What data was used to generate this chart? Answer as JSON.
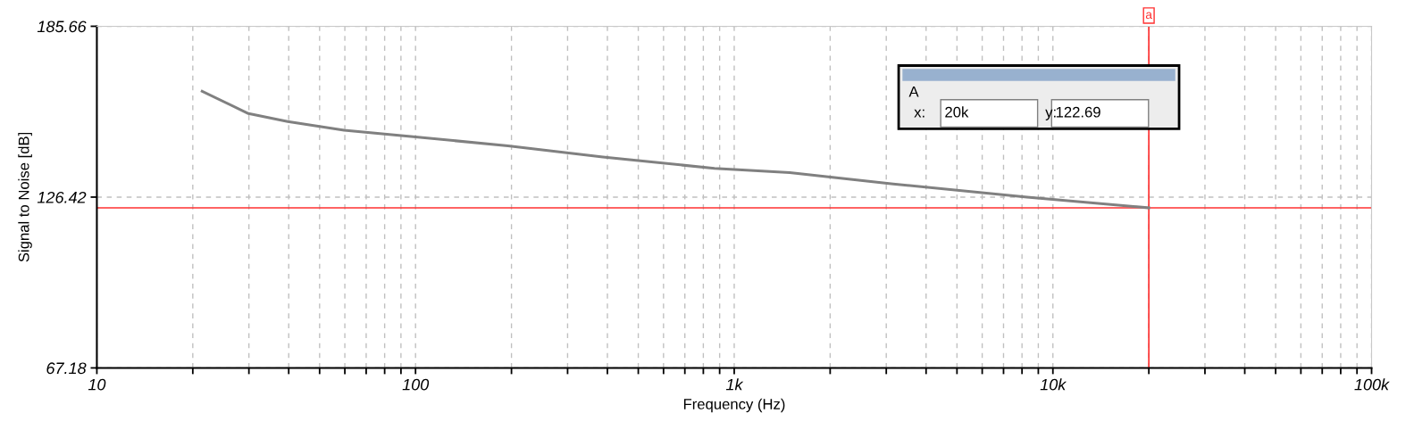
{
  "chart_data": {
    "type": "line",
    "xlabel": "Frequency (Hz)",
    "ylabel": "Signal to Noise [dB]",
    "log": "x",
    "x": [
      21.4,
      29.9,
      39.7,
      59.7,
      100,
      195,
      387,
      867,
      1494,
      3155,
      8300,
      20000
    ],
    "series": [
      {
        "color": "#808080",
        "values": [
          163.1,
          155.4,
          152.6,
          149.6,
          147.3,
          144.2,
          140.3,
          136.4,
          134.9,
          131.0,
          126.4,
          122.69
        ]
      }
    ],
    "xlim": [
      10,
      100000
    ],
    "xticks": [
      {
        "value": 10,
        "label": "10"
      },
      {
        "value": 20,
        "label": null
      },
      {
        "value": 30,
        "label": null
      },
      {
        "value": 40,
        "label": null
      },
      {
        "value": 50,
        "label": null
      },
      {
        "value": 60,
        "label": null
      },
      {
        "value": 70,
        "label": null
      },
      {
        "value": 80,
        "label": null
      },
      {
        "value": 90,
        "label": null
      },
      {
        "value": 100,
        "label": "100"
      },
      {
        "value": 200,
        "label": null
      },
      {
        "value": 300,
        "label": null
      },
      {
        "value": 400,
        "label": null
      },
      {
        "value": 500,
        "label": null
      },
      {
        "value": 600,
        "label": null
      },
      {
        "value": 700,
        "label": null
      },
      {
        "value": 800,
        "label": null
      },
      {
        "value": 900,
        "label": null
      },
      {
        "value": 1000,
        "label": "1k"
      },
      {
        "value": 2000,
        "label": null
      },
      {
        "value": 3000,
        "label": null
      },
      {
        "value": 4000,
        "label": null
      },
      {
        "value": 5000,
        "label": null
      },
      {
        "value": 6000,
        "label": null
      },
      {
        "value": 7000,
        "label": null
      },
      {
        "value": 8000,
        "label": null
      },
      {
        "value": 9000,
        "label": null
      },
      {
        "value": 10000,
        "label": "10k"
      },
      {
        "value": 20000,
        "label": null
      },
      {
        "value": 30000,
        "label": null
      },
      {
        "value": 40000,
        "label": null
      },
      {
        "value": 50000,
        "label": null
      },
      {
        "value": 60000,
        "label": null
      },
      {
        "value": 70000,
        "label": null
      },
      {
        "value": 80000,
        "label": null
      },
      {
        "value": 90000,
        "label": null
      },
      {
        "value": 100000,
        "label": "100k"
      }
    ],
    "ylim": [
      67.18,
      185.66
    ],
    "yticks": [
      67.18,
      126.42,
      185.66
    ],
    "grid": true,
    "legend": false,
    "marker": "none",
    "line_style": "solid",
    "ref_lines": [
      {
        "axis": "x",
        "value": 20000,
        "label": "a",
        "color": "#ff3030"
      },
      {
        "axis": "y",
        "value": 122.69,
        "color": "#ff3030"
      }
    ],
    "annotations": [
      "A",
      "x:",
      "20k",
      "y:",
      "122.69"
    ]
  }
}
